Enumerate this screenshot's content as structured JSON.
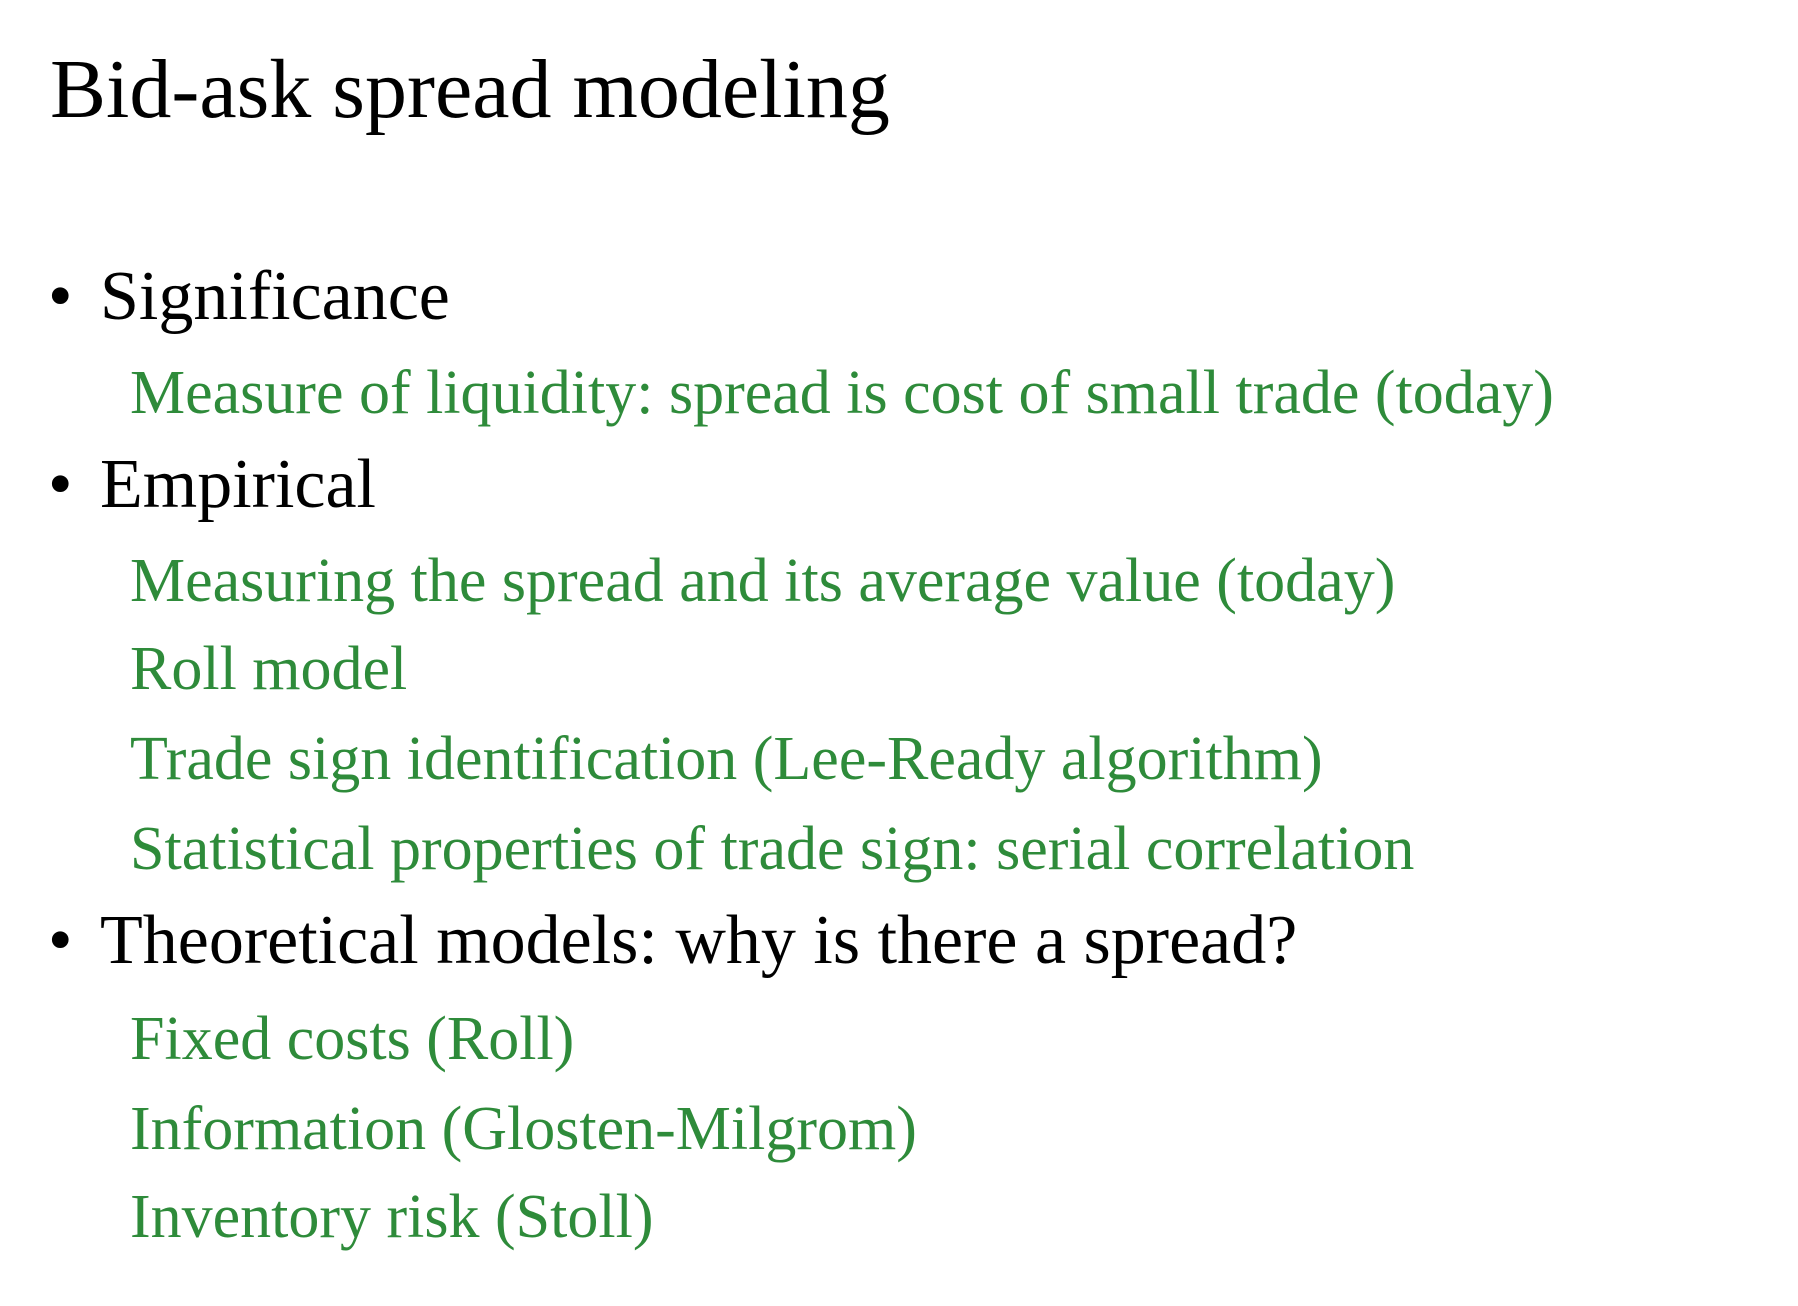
{
  "slide": {
    "title": "Bid-ask spread modeling",
    "colors": {
      "heading": "#000000",
      "subitem": "#2e8b3a"
    },
    "sections": [
      {
        "bullet": "•",
        "heading": "Significance",
        "items": [
          "Measure of liquidity: spread is cost of small trade (today)"
        ]
      },
      {
        "bullet": "•",
        "heading": "Empirical",
        "items": [
          "Measuring the spread and its average value (today)",
          "Roll model",
          "Trade sign identification (Lee-Ready algorithm)",
          "Statistical properties of trade sign:  serial correlation"
        ]
      },
      {
        "bullet": "•",
        "heading": "Theoretical models:  why is there a spread?",
        "items": [
          "Fixed costs (Roll)",
          "Information (Glosten-Milgrom)",
          "Inventory risk (Stoll)"
        ]
      }
    ]
  }
}
